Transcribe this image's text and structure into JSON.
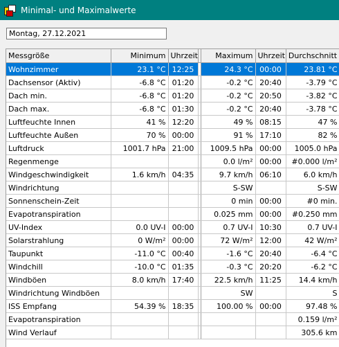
{
  "window": {
    "title": "Minimal- und Maximalwerte"
  },
  "date_field": {
    "value": "Montag, 27.12.2021"
  },
  "table": {
    "headers": [
      "Messgröße",
      "Minimum",
      "Uhrzeit",
      "Maximum",
      "Uhrzeit",
      "Durchschnitt"
    ],
    "selected_row": 0,
    "rows": [
      [
        "Wohnzimmer",
        "23.1 °C",
        "12:25",
        "24.3 °C",
        "00:00",
        "23.81 °C"
      ],
      [
        "Dachsensor (Aktiv)",
        "-6.8 °C",
        "01:20",
        "-0.2 °C",
        "20:40",
        "-3.79 °C"
      ],
      [
        "Dach min.",
        "-6.8 °C",
        "01:20",
        "-0.2 °C",
        "20:50",
        "-3.82 °C"
      ],
      [
        "Dach max.",
        "-6.8 °C",
        "01:30",
        "-0.2 °C",
        "20:40",
        "-3.78 °C"
      ],
      [
        "Luftfeuchte Innen",
        "41 %",
        "12:20",
        "49 %",
        "08:15",
        "47 %"
      ],
      [
        "Luftfeuchte Außen",
        "70 %",
        "00:00",
        "91 %",
        "17:10",
        "82 %"
      ],
      [
        "Luftdruck",
        "1001.7 hPa",
        "21:00",
        "1009.5 hPa",
        "00:00",
        "1005.0 hPa"
      ],
      [
        "Regenmenge",
        "",
        "",
        "0.0 l/m²",
        "00:00",
        "#0.000 l/m²"
      ],
      [
        "Windgeschwindigkeit",
        "1.6 km/h",
        "04:35",
        "9.7 km/h",
        "06:10",
        "6.0 km/h"
      ],
      [
        "Windrichtung",
        "",
        "",
        "S-SW",
        "",
        "S-SW"
      ],
      [
        "Sonnenschein-Zeit",
        "",
        "",
        "0 min",
        "00:00",
        "#0 min."
      ],
      [
        "Evapotranspiration",
        "",
        "",
        "0.025 mm",
        "00:00",
        "#0.250 mm"
      ],
      [
        "UV-Index",
        "0.0 UV-I",
        "00:00",
        "0.7 UV-I",
        "10:30",
        "0.7 UV-I"
      ],
      [
        "Solarstrahlung",
        "0 W/m²",
        "00:00",
        "72 W/m²",
        "12:00",
        "42 W/m²"
      ],
      [
        "Taupunkt",
        "-11.0 °C",
        "00:40",
        "-1.6 °C",
        "20:40",
        "-6.4 °C"
      ],
      [
        "Windchill",
        "-10.0 °C",
        "01:35",
        "-0.3 °C",
        "20:20",
        "-6.2 °C"
      ],
      [
        "Windböen",
        "8.0 km/h",
        "17:40",
        "22.5 km/h",
        "11:25",
        "14.4 km/h"
      ],
      [
        "Windrichtung Windböen",
        "",
        "",
        "SW",
        "",
        "S"
      ],
      [
        "ISS Empfang",
        "54.39 %",
        "18:35",
        "100.00 %",
        "00:00",
        "97.48 %"
      ],
      [
        "Evapotranspiration",
        "",
        "",
        "",
        "",
        "0.159 l/m²"
      ],
      [
        "Wind Verlauf",
        "",
        "",
        "",
        "",
        "305.6 km"
      ]
    ]
  }
}
